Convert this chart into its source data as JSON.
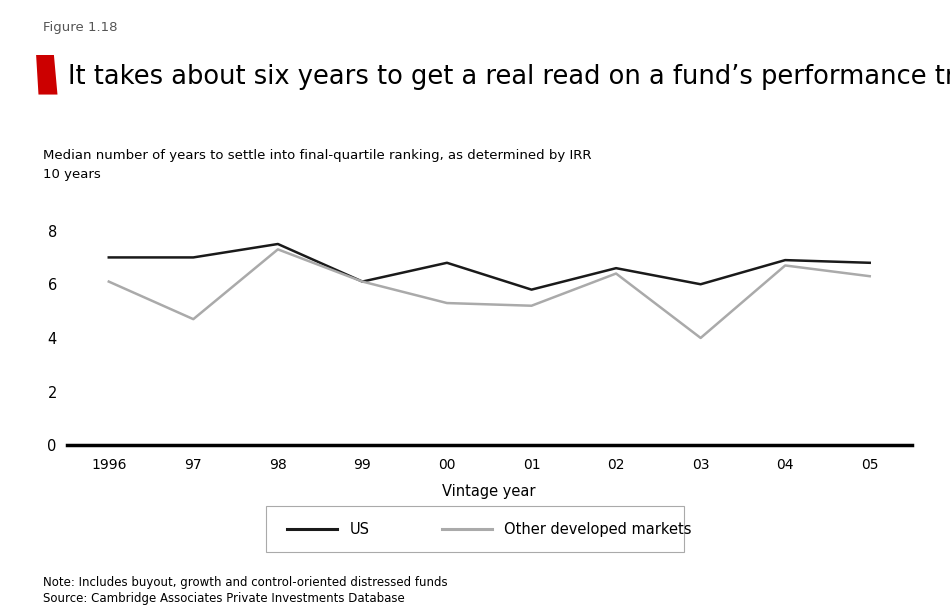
{
  "figure_label": "Figure 1.18",
  "title": "It takes about six years to get a real read on a fund’s performance trajectory",
  "subtitle": "Median number of years to settle into final-quartile ranking, as determined by IRR",
  "ylabel_text": "10 years",
  "xlabel": "Vintage year",
  "note": "Note: Includes buyout, growth and control-oriented distressed funds",
  "source": "Source: Cambridge Associates Private Investments Database",
  "x_labels": [
    "1996",
    "97",
    "98",
    "99",
    "00",
    "01",
    "02",
    "03",
    "04",
    "05"
  ],
  "x_values": [
    1996,
    1997,
    1998,
    1999,
    2000,
    2001,
    2002,
    2003,
    2004,
    2005
  ],
  "us_values": [
    7.0,
    7.0,
    7.5,
    6.1,
    6.8,
    5.8,
    6.6,
    6.0,
    6.9,
    6.8
  ],
  "other_values": [
    6.1,
    4.7,
    7.3,
    6.1,
    5.3,
    5.2,
    6.4,
    4.0,
    6.7,
    6.3
  ],
  "us_color": "#1a1a1a",
  "other_color": "#aaaaaa",
  "ylim": [
    0,
    10
  ],
  "yticks": [
    0,
    2,
    4,
    6,
    8
  ],
  "red_color": "#cc0000",
  "background_color": "#ffffff",
  "legend_us": "US",
  "legend_other": "Other developed markets"
}
